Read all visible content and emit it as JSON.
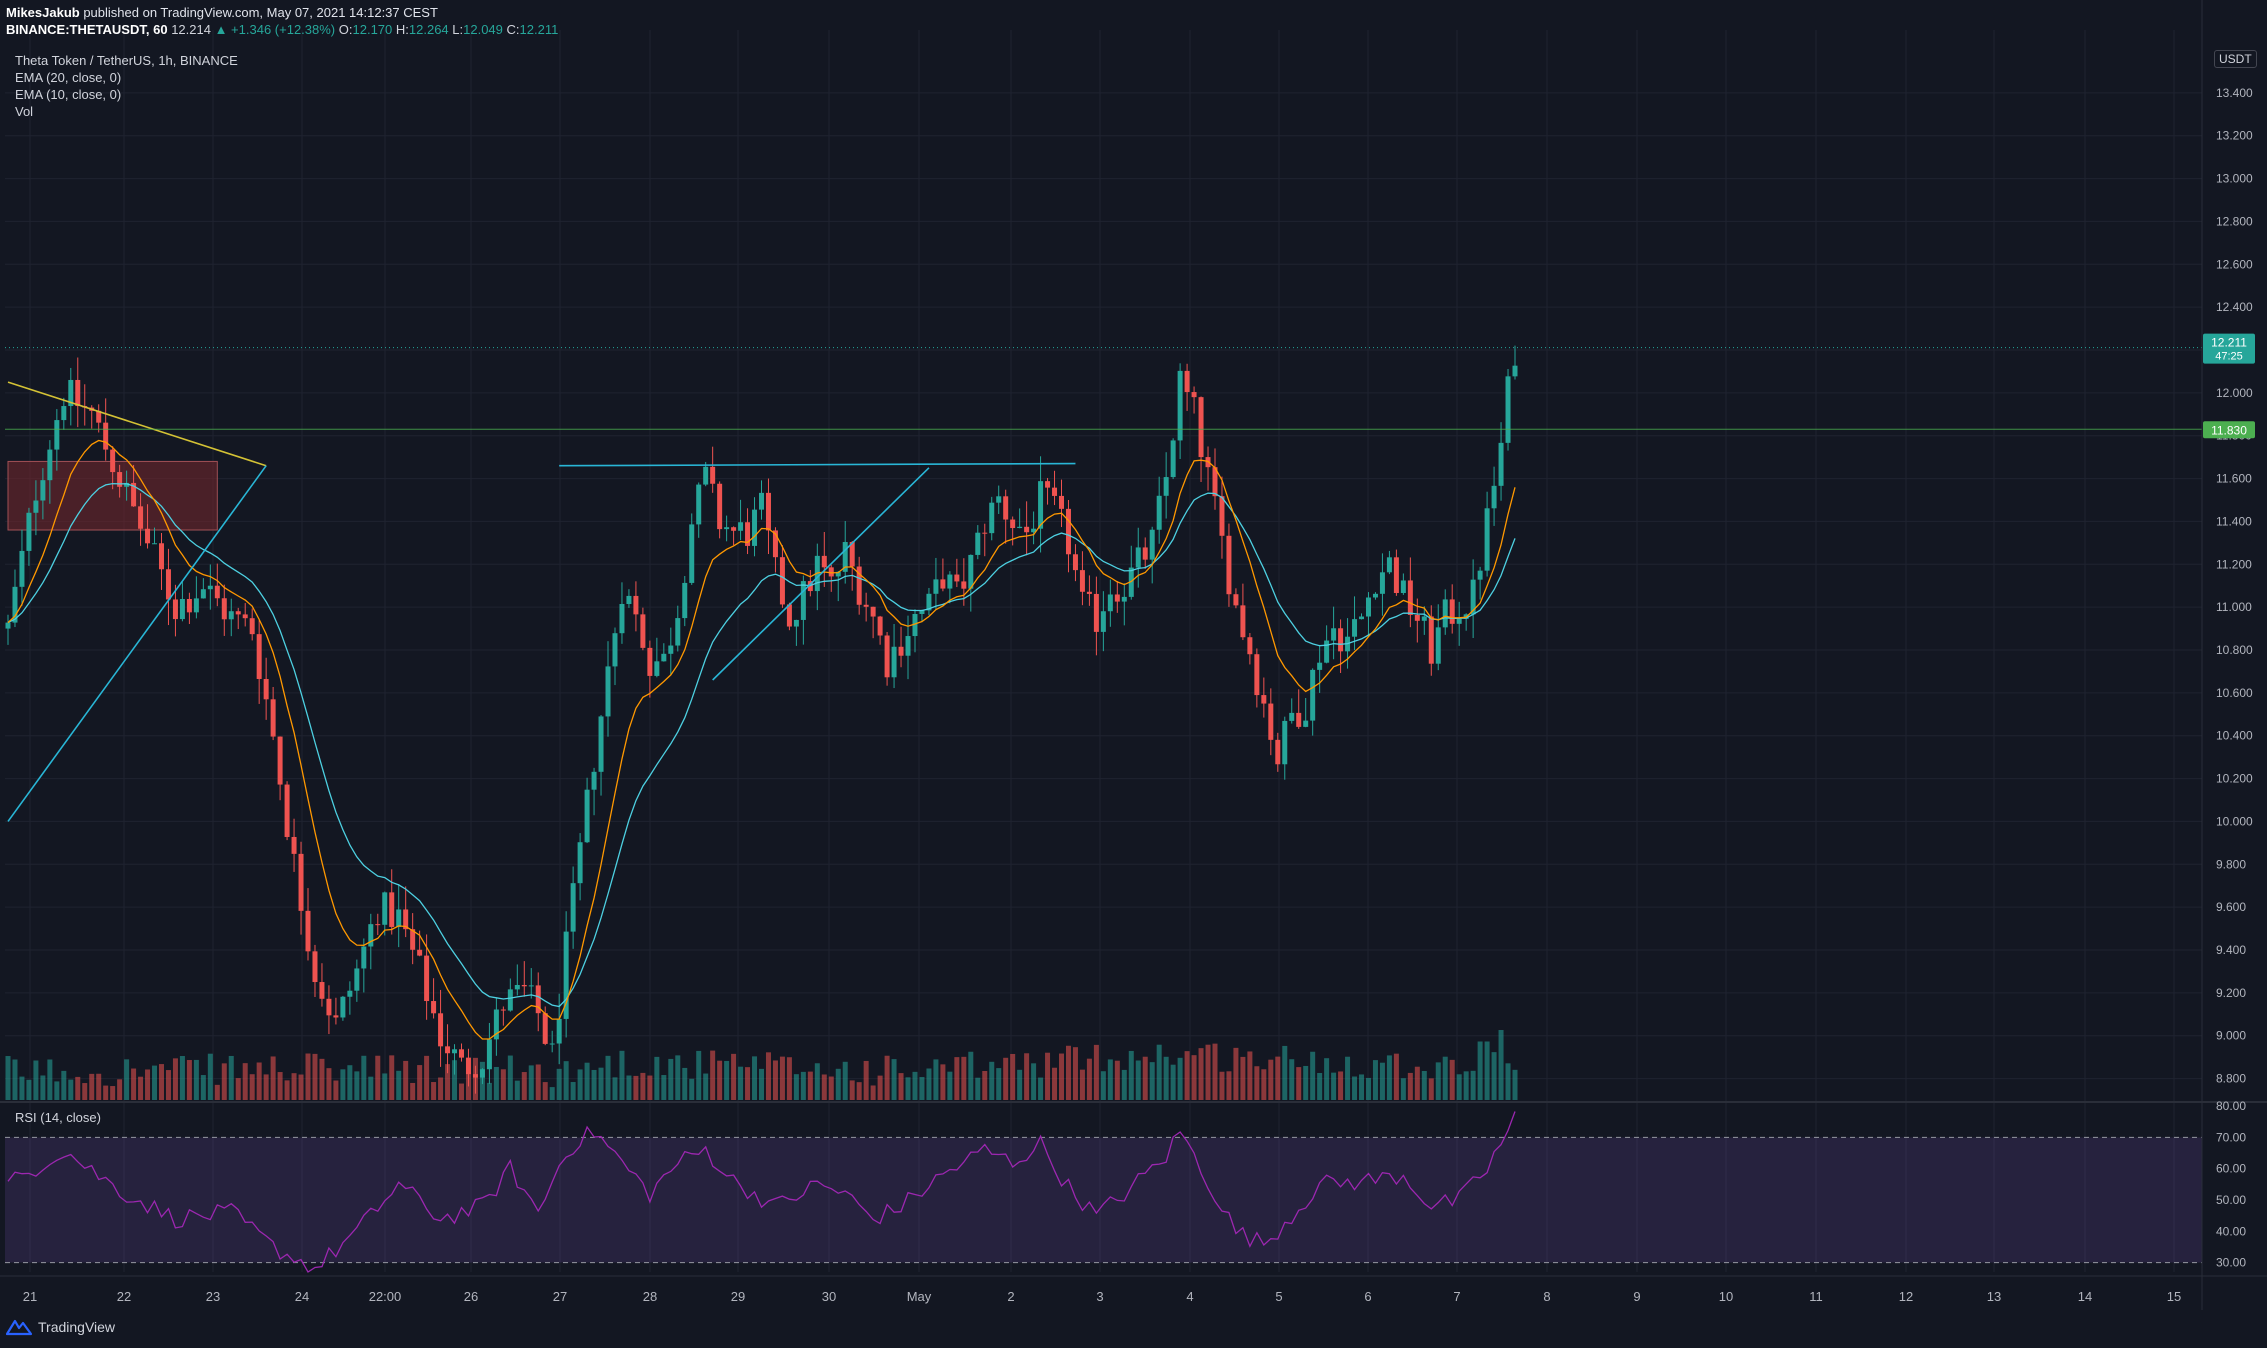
{
  "header": {
    "author": "MikesJakub",
    "published": "published on TradingView.com, May 07, 2021 14:12:37 CEST",
    "symbol": "BINANCE:THETAUSDT, 60",
    "last": "12.214",
    "change": "▲ +1.346 (+12.38%)",
    "o_label": "O:",
    "o_value": "12.170",
    "h_label": "H:",
    "h_value": "12.264",
    "l_label": "L:",
    "l_value": "12.049",
    "c_label": "C:",
    "c_value": "12.211"
  },
  "legend": {
    "title": "Theta Token / TetherUS, 1h, BINANCE",
    "ema20": "EMA (20, close, 0)",
    "ema10": "EMA (10, close, 0)",
    "vol": "Vol"
  },
  "rsi_legend": "RSI (14, close)",
  "footer": {
    "brand": "TradingView"
  },
  "colors": {
    "background": "#131722",
    "up": "#26a69a",
    "down": "#ef5350",
    "ema20": "#4dd0e1",
    "ema10": "#ff9800",
    "rsi": "#9c27b0",
    "trendline_blue": "#29b6d6",
    "trendline_yellow": "#d4c235",
    "support_line": "#4caf50"
  },
  "chart_data": {
    "type": "candlestick",
    "currency": "USDT",
    "price_axis": {
      "ticks": [
        "13.400",
        "13.200",
        "13.000",
        "12.800",
        "12.600",
        "12.400",
        "12.200",
        "12.000",
        "11.800",
        "11.600",
        "11.400",
        "11.200",
        "11.000",
        "10.800",
        "10.600",
        "10.400",
        "10.200",
        "10.000",
        "9.800",
        "9.600",
        "9.400",
        "9.200",
        "9.000",
        "8.800"
      ],
      "range": [
        8.7,
        13.6
      ]
    },
    "time_axis": {
      "ticks": [
        "21",
        "22",
        "23",
        "24",
        "22:00",
        "26",
        "27",
        "28",
        "29",
        "30",
        "May",
        "2",
        "3",
        "4",
        "5",
        "6",
        "7",
        "8",
        "9",
        "10",
        "11",
        "12",
        "13",
        "14",
        "15"
      ]
    },
    "last_price": {
      "value": "12.211",
      "countdown": "47:25"
    },
    "level_line": {
      "value": "11.830"
    },
    "rsi_axis": {
      "ticks": [
        "80.00",
        "70.00",
        "60.00",
        "50.00",
        "40.00",
        "30.00"
      ],
      "band": [
        30,
        70
      ],
      "range": [
        27,
        81
      ]
    },
    "price_path": [
      [
        0,
        10.9
      ],
      [
        4,
        11.55
      ],
      [
        8,
        12.0
      ],
      [
        12,
        11.9
      ],
      [
        16,
        11.6
      ],
      [
        20,
        11.3
      ],
      [
        24,
        11.0
      ],
      [
        28,
        11.1
      ],
      [
        32,
        10.95
      ],
      [
        35,
        10.9
      ],
      [
        38,
        10.4
      ],
      [
        41,
        9.8
      ],
      [
        44,
        9.3
      ],
      [
        47,
        9.05
      ],
      [
        50,
        9.3
      ],
      [
        53,
        9.6
      ],
      [
        56,
        9.55
      ],
      [
        59,
        9.3
      ],
      [
        62,
        9.0
      ],
      [
        65,
        8.85
      ],
      [
        68,
        8.9
      ],
      [
        71,
        9.15
      ],
      [
        74,
        9.2
      ],
      [
        76,
        9.1
      ],
      [
        78,
        8.9
      ],
      [
        80,
        9.4
      ],
      [
        82,
        9.85
      ],
      [
        84,
        10.3
      ],
      [
        86,
        10.7
      ],
      [
        88,
        11.1
      ],
      [
        90,
        10.95
      ],
      [
        92,
        10.75
      ],
      [
        94,
        10.75
      ],
      [
        96,
        11.0
      ],
      [
        98,
        11.4
      ],
      [
        100,
        11.6
      ],
      [
        102,
        11.4
      ],
      [
        104,
        11.35
      ],
      [
        106,
        11.35
      ],
      [
        108,
        11.45
      ],
      [
        110,
        11.15
      ],
      [
        112,
        10.95
      ],
      [
        114,
        11.05
      ],
      [
        116,
        11.2
      ],
      [
        118,
        11.1
      ],
      [
        120,
        11.25
      ],
      [
        122,
        11.1
      ],
      [
        124,
        10.95
      ],
      [
        126,
        10.75
      ],
      [
        128,
        10.85
      ],
      [
        130,
        10.95
      ],
      [
        132,
        11.0
      ],
      [
        134,
        11.15
      ],
      [
        136,
        11.05
      ],
      [
        138,
        11.2
      ],
      [
        140,
        11.4
      ],
      [
        142,
        11.5
      ],
      [
        144,
        11.4
      ],
      [
        146,
        11.35
      ],
      [
        148,
        11.5
      ],
      [
        150,
        11.45
      ],
      [
        152,
        11.3
      ],
      [
        154,
        11.0
      ],
      [
        156,
        10.95
      ],
      [
        158,
        11.1
      ],
      [
        160,
        11.1
      ],
      [
        162,
        11.2
      ],
      [
        164,
        11.3
      ],
      [
        166,
        11.6
      ],
      [
        168,
        12.05
      ],
      [
        170,
        11.9
      ],
      [
        172,
        11.6
      ],
      [
        174,
        11.3
      ],
      [
        176,
        11.0
      ],
      [
        178,
        10.8
      ],
      [
        180,
        10.55
      ],
      [
        182,
        10.3
      ],
      [
        184,
        10.5
      ],
      [
        186,
        10.55
      ],
      [
        188,
        10.8
      ],
      [
        190,
        10.9
      ],
      [
        192,
        10.85
      ],
      [
        194,
        10.95
      ],
      [
        196,
        11.15
      ],
      [
        198,
        11.2
      ],
      [
        200,
        11.05
      ],
      [
        202,
        10.95
      ],
      [
        204,
        10.8
      ],
      [
        206,
        10.95
      ],
      [
        208,
        11.0
      ],
      [
        210,
        11.05
      ],
      [
        212,
        11.4
      ],
      [
        214,
        11.75
      ],
      [
        215,
        12.0
      ],
      [
        216,
        12.21
      ]
    ],
    "volume_profile": [
      [
        0,
        0.2
      ],
      [
        40,
        0.25
      ],
      [
        80,
        0.2
      ],
      [
        88,
        0.35
      ],
      [
        130,
        0.2
      ],
      [
        166,
        0.5
      ],
      [
        180,
        0.4
      ],
      [
        210,
        0.3
      ],
      [
        214,
        0.9
      ],
      [
        216,
        0.1
      ]
    ],
    "rsi_path": [
      [
        0,
        55
      ],
      [
        8,
        66
      ],
      [
        16,
        53
      ],
      [
        24,
        44
      ],
      [
        32,
        46
      ],
      [
        38,
        35
      ],
      [
        44,
        28
      ],
      [
        50,
        40
      ],
      [
        56,
        55
      ],
      [
        62,
        44
      ],
      [
        68,
        48
      ],
      [
        72,
        60
      ],
      [
        76,
        46
      ],
      [
        80,
        66
      ],
      [
        84,
        72
      ],
      [
        88,
        62
      ],
      [
        92,
        52
      ],
      [
        96,
        62
      ],
      [
        100,
        66
      ],
      [
        104,
        56
      ],
      [
        110,
        48
      ],
      [
        116,
        55
      ],
      [
        120,
        52
      ],
      [
        124,
        44
      ],
      [
        128,
        48
      ],
      [
        134,
        58
      ],
      [
        140,
        66
      ],
      [
        144,
        62
      ],
      [
        148,
        68
      ],
      [
        152,
        54
      ],
      [
        156,
        45
      ],
      [
        160,
        52
      ],
      [
        166,
        64
      ],
      [
        168,
        72
      ],
      [
        172,
        56
      ],
      [
        176,
        40
      ],
      [
        180,
        36
      ],
      [
        184,
        45
      ],
      [
        188,
        55
      ],
      [
        194,
        56
      ],
      [
        200,
        58
      ],
      [
        204,
        48
      ],
      [
        208,
        50
      ],
      [
        212,
        60
      ],
      [
        216,
        76
      ]
    ],
    "trendlines": [
      {
        "name": "yellow-descending",
        "color": "yellow",
        "from": [
          0,
          12.05
        ],
        "to": [
          37,
          11.66
        ]
      },
      {
        "name": "blue-ascending-left",
        "color": "blue",
        "from": [
          0,
          10.0
        ],
        "to": [
          37,
          11.66
        ]
      },
      {
        "name": "blue-resistance",
        "color": "blue",
        "from": [
          79,
          11.66
        ],
        "to": [
          153,
          11.67
        ]
      },
      {
        "name": "blue-ascending-mid",
        "color": "blue",
        "from": [
          101,
          10.66
        ],
        "to": [
          132,
          11.65
        ]
      }
    ],
    "zone": {
      "from_index": 0,
      "to_index": 30,
      "low": 11.36,
      "high": 11.68
    }
  }
}
